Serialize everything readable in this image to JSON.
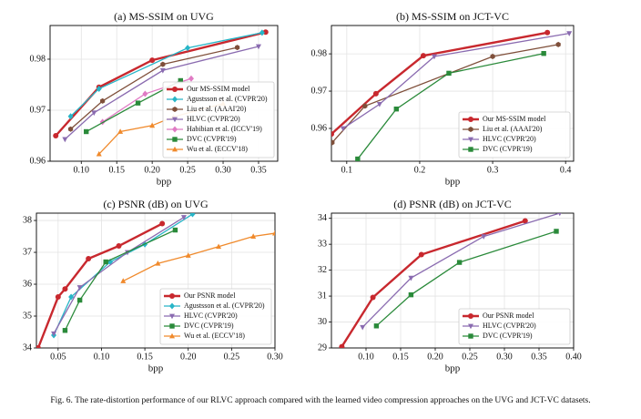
{
  "chart_data": [
    {
      "type": "line",
      "title": "(a) MS-SSIM on UVG",
      "x_label": "bpp",
      "xlim": [
        0.056,
        0.377
      ],
      "xticks": [
        {
          "value": 0.1,
          "label": "0.10"
        },
        0.15,
        {
          "value": 0.2,
          "label": "0.20"
        },
        0.25,
        {
          "value": 0.3,
          "label": "0.30"
        },
        0.35
      ],
      "ylim": [
        0.96,
        0.9866
      ],
      "yticks": [
        0.96,
        0.97,
        0.98
      ],
      "grid": true,
      "legend": "lower right",
      "series": [
        {
          "name": "Our MS-SSIM model",
          "color": "#c8282e",
          "marker": "circle",
          "x": [
            0.064,
            0.125,
            0.2,
            0.36
          ],
          "values": [
            0.965,
            0.9745,
            0.9798,
            0.9853
          ]
        },
        {
          "name": "Agustsson et al. (CVPR'20)",
          "color": "#27b5c7",
          "marker": "diamond",
          "x": [
            0.085,
            0.125,
            0.25,
            0.355
          ],
          "values": [
            0.9688,
            0.9742,
            0.9822,
            0.9852
          ]
        },
        {
          "name": "Liu et al. (AAAI'20)",
          "color": "#7f4f3a",
          "marker": "hexagon",
          "x": [
            0.085,
            0.13,
            0.215,
            0.32
          ],
          "values": [
            0.9663,
            0.9718,
            0.979,
            0.9823
          ]
        },
        {
          "name": "HLVC (CVPR'20)",
          "color": "#8a6bb0",
          "marker": "triangle-down",
          "x": [
            0.077,
            0.118,
            0.215,
            0.35
          ],
          "values": [
            0.9643,
            0.9695,
            0.9778,
            0.9825
          ]
        },
        {
          "name": "Habibian et al. (ICCV'19)",
          "color": "#e07bc4",
          "marker": "diamond",
          "x": [
            0.13,
            0.19,
            0.255
          ],
          "values": [
            0.9677,
            0.9732,
            0.9762
          ]
        },
        {
          "name": "DVC (CVPR'19)",
          "color": "#2a8a3a",
          "marker": "square",
          "x": [
            0.107,
            0.18,
            0.24
          ],
          "values": [
            0.9658,
            0.9714,
            0.9758
          ]
        },
        {
          "name": "Wu et al. (ECCV'18)",
          "color": "#f08a2c",
          "marker": "triangle-up",
          "x": [
            0.125,
            0.155,
            0.2,
            0.23,
            0.3
          ],
          "values": [
            0.9614,
            0.9658,
            0.967,
            0.9687,
            0.9713
          ]
        }
      ]
    },
    {
      "type": "line",
      "title": "(b) MS-SSIM on JCT-VC",
      "x_label": "bpp",
      "xlim": [
        0.079,
        0.411
      ],
      "xticks": [
        0.1,
        0.2,
        0.3,
        0.4
      ],
      "ylim": [
        0.9512,
        0.9876
      ],
      "yticks": [
        0.96,
        0.97,
        0.98
      ],
      "grid": true,
      "legend": "lower right",
      "series": [
        {
          "name": "Our MS-SSIM model",
          "color": "#c8282e",
          "marker": "circle",
          "x": [
            0.079,
            0.14,
            0.205,
            0.375
          ],
          "values": [
            0.9585,
            0.9693,
            0.9795,
            0.9857
          ]
        },
        {
          "name": "Liu et al. (AAAI'20)",
          "color": "#7f4f3a",
          "marker": "hexagon",
          "x": [
            0.08,
            0.125,
            0.3,
            0.39
          ],
          "values": [
            0.9562,
            0.966,
            0.9793,
            0.9825
          ]
        },
        {
          "name": "HLVC (CVPR'20)",
          "color": "#8a6bb0",
          "marker": "triangle-down",
          "x": [
            0.095,
            0.145,
            0.22,
            0.405
          ],
          "values": [
            0.96,
            0.9665,
            0.9793,
            0.9855
          ]
        },
        {
          "name": "DVC (CVPR'19)",
          "color": "#2a8a3a",
          "marker": "square",
          "x": [
            0.115,
            0.168,
            0.24,
            0.37
          ],
          "values": [
            0.9518,
            0.9652,
            0.9748,
            0.9801
          ]
        }
      ]
    },
    {
      "type": "line",
      "title": "(c) PSNR (dB) on UVG",
      "x_label": "bpp",
      "xlim": [
        0.025,
        0.3
      ],
      "xticks": [
        0.05,
        {
          "value": 0.1,
          "label": "0.10"
        },
        0.15,
        {
          "value": 0.2,
          "label": "0.20"
        },
        0.25,
        {
          "value": 0.3,
          "label": "0.30"
        }
      ],
      "ylim": [
        34,
        38.23
      ],
      "yticks": [
        34,
        35,
        36,
        37,
        38
      ],
      "grid": true,
      "legend": "lower right",
      "series": [
        {
          "name": "Our PSNR model",
          "color": "#c8282e",
          "marker": "circle",
          "x": [
            0.027,
            0.05,
            0.058,
            0.085,
            0.12,
            0.17
          ],
          "values": [
            34.0,
            35.6,
            35.85,
            36.8,
            37.2,
            37.9
          ]
        },
        {
          "name": "Agustsson et al. (CVPR'20)",
          "color": "#27b5c7",
          "marker": "diamond",
          "x": [
            0.045,
            0.065,
            0.11,
            0.15,
            0.205
          ],
          "values": [
            34.4,
            35.6,
            36.7,
            37.25,
            38.2
          ]
        },
        {
          "name": "HLVC (CVPR'20)",
          "color": "#8a6bb0",
          "marker": "triangle-down",
          "x": [
            0.045,
            0.075,
            0.13,
            0.195
          ],
          "values": [
            34.45,
            35.9,
            37.0,
            38.1
          ]
        },
        {
          "name": "DVC (CVPR'19)",
          "color": "#2a8a3a",
          "marker": "square",
          "x": [
            0.058,
            0.075,
            0.105,
            0.185
          ],
          "values": [
            34.55,
            35.5,
            36.7,
            37.7
          ]
        },
        {
          "name": "Wu et al. (ECCV'18)",
          "color": "#f08a2c",
          "marker": "triangle-up",
          "x": [
            0.125,
            0.165,
            0.2,
            0.235,
            0.275,
            0.3
          ],
          "values": [
            36.1,
            36.65,
            36.9,
            37.18,
            37.5,
            37.6
          ]
        }
      ]
    },
    {
      "type": "line",
      "title": "(d) PSNR (dB) on JCT-VC",
      "x_label": "bpp",
      "xlim": [
        0.05,
        0.4
      ],
      "xticks": [
        {
          "value": 0.1,
          "label": "0.10"
        },
        0.15,
        {
          "value": 0.2,
          "label": "0.20"
        },
        0.25,
        {
          "value": 0.3,
          "label": "0.30"
        },
        0.35,
        {
          "value": 0.4,
          "label": "0.40"
        }
      ],
      "ylim": [
        29,
        34.2
      ],
      "yticks": [
        29,
        30,
        31,
        32,
        33,
        34
      ],
      "grid": true,
      "legend": "lower right",
      "series": [
        {
          "name": "Our PSNR model",
          "color": "#c8282e",
          "marker": "circle",
          "x": [
            0.065,
            0.11,
            0.18,
            0.33
          ],
          "values": [
            29.05,
            30.95,
            32.6,
            33.9
          ]
        },
        {
          "name": "HLVC (CVPR'20)",
          "color": "#8a6bb0",
          "marker": "triangle-down",
          "x": [
            0.095,
            0.165,
            0.27,
            0.38
          ],
          "values": [
            29.8,
            31.7,
            33.3,
            34.2
          ]
        },
        {
          "name": "DVC (CVPR'19)",
          "color": "#2a8a3a",
          "marker": "square",
          "x": [
            0.115,
            0.165,
            0.235,
            0.375
          ],
          "values": [
            29.85,
            31.05,
            32.3,
            33.5
          ]
        }
      ]
    }
  ],
  "caption": "Fig. 6.  The rate-distortion performance of our RLVC approach compared with the learned video compression approaches on the UVG and JCT-VC datasets."
}
